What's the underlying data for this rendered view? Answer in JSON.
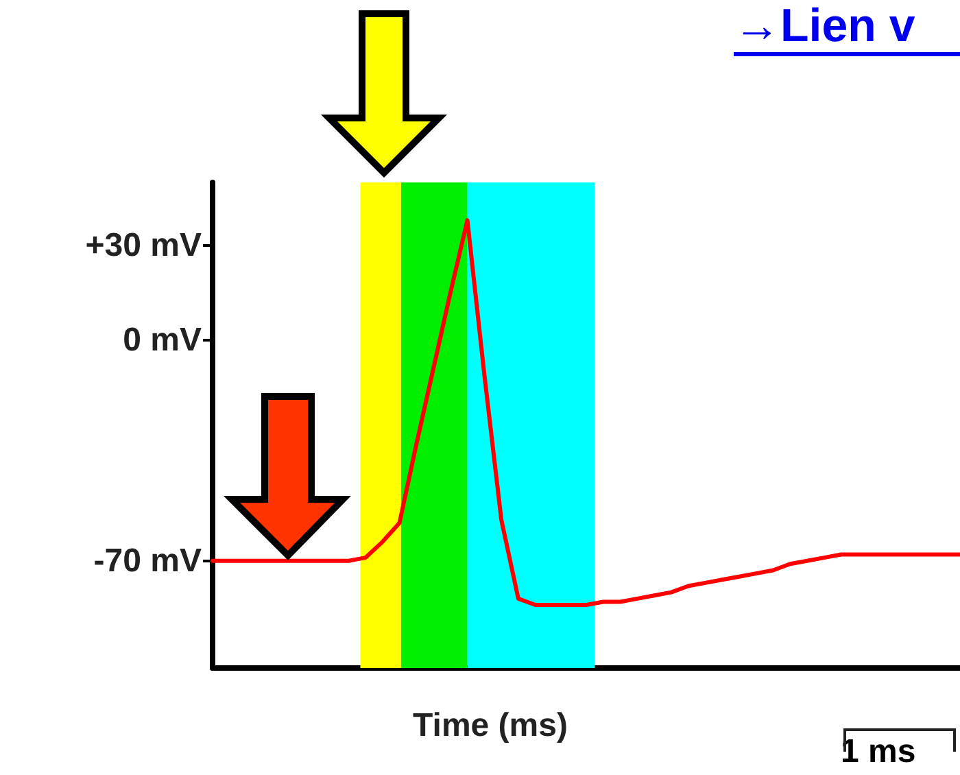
{
  "chart_data": {
    "type": "line",
    "xlabel": "Time (ms)",
    "categories": [
      null,
      null,
      null,
      null,
      null,
      null,
      null,
      null,
      null,
      null,
      null,
      null,
      null,
      null,
      null,
      null,
      null,
      null,
      null,
      null,
      null,
      null,
      null,
      null,
      null,
      null,
      null,
      null,
      null,
      null,
      null,
      null,
      null,
      null,
      null,
      null,
      null,
      null,
      null,
      null,
      null,
      null,
      null,
      null,
      null
    ],
    "series": [
      {
        "color": "#ff0000",
        "values": [
          -70,
          -70,
          -70,
          -70,
          -70,
          -70,
          -70,
          -70,
          -70,
          -69,
          -64,
          -58,
          -33,
          -9,
          15,
          38,
          -11,
          -57,
          -82,
          -84,
          -84,
          -84,
          -84,
          -83,
          -83,
          -82,
          -81,
          -80,
          -78,
          -77,
          -76,
          -75,
          -74,
          -73,
          -71,
          -70,
          -69,
          -68,
          -68,
          -68,
          -68,
          -68,
          -68,
          -68,
          -68
        ]
      }
    ],
    "ylim": [
      -104,
      50
    ],
    "yticks": [
      {
        "value": 30,
        "label": "+30 mV"
      },
      {
        "value": 0,
        "label": "0 mV"
      },
      {
        "value": -70,
        "label": "-70 mV"
      }
    ],
    "annotations": [
      "→Lien v",
      "1 ms"
    ],
    "tick_labels": "y",
    "grid": false,
    "marker": "none",
    "line_style": "solid"
  }
}
